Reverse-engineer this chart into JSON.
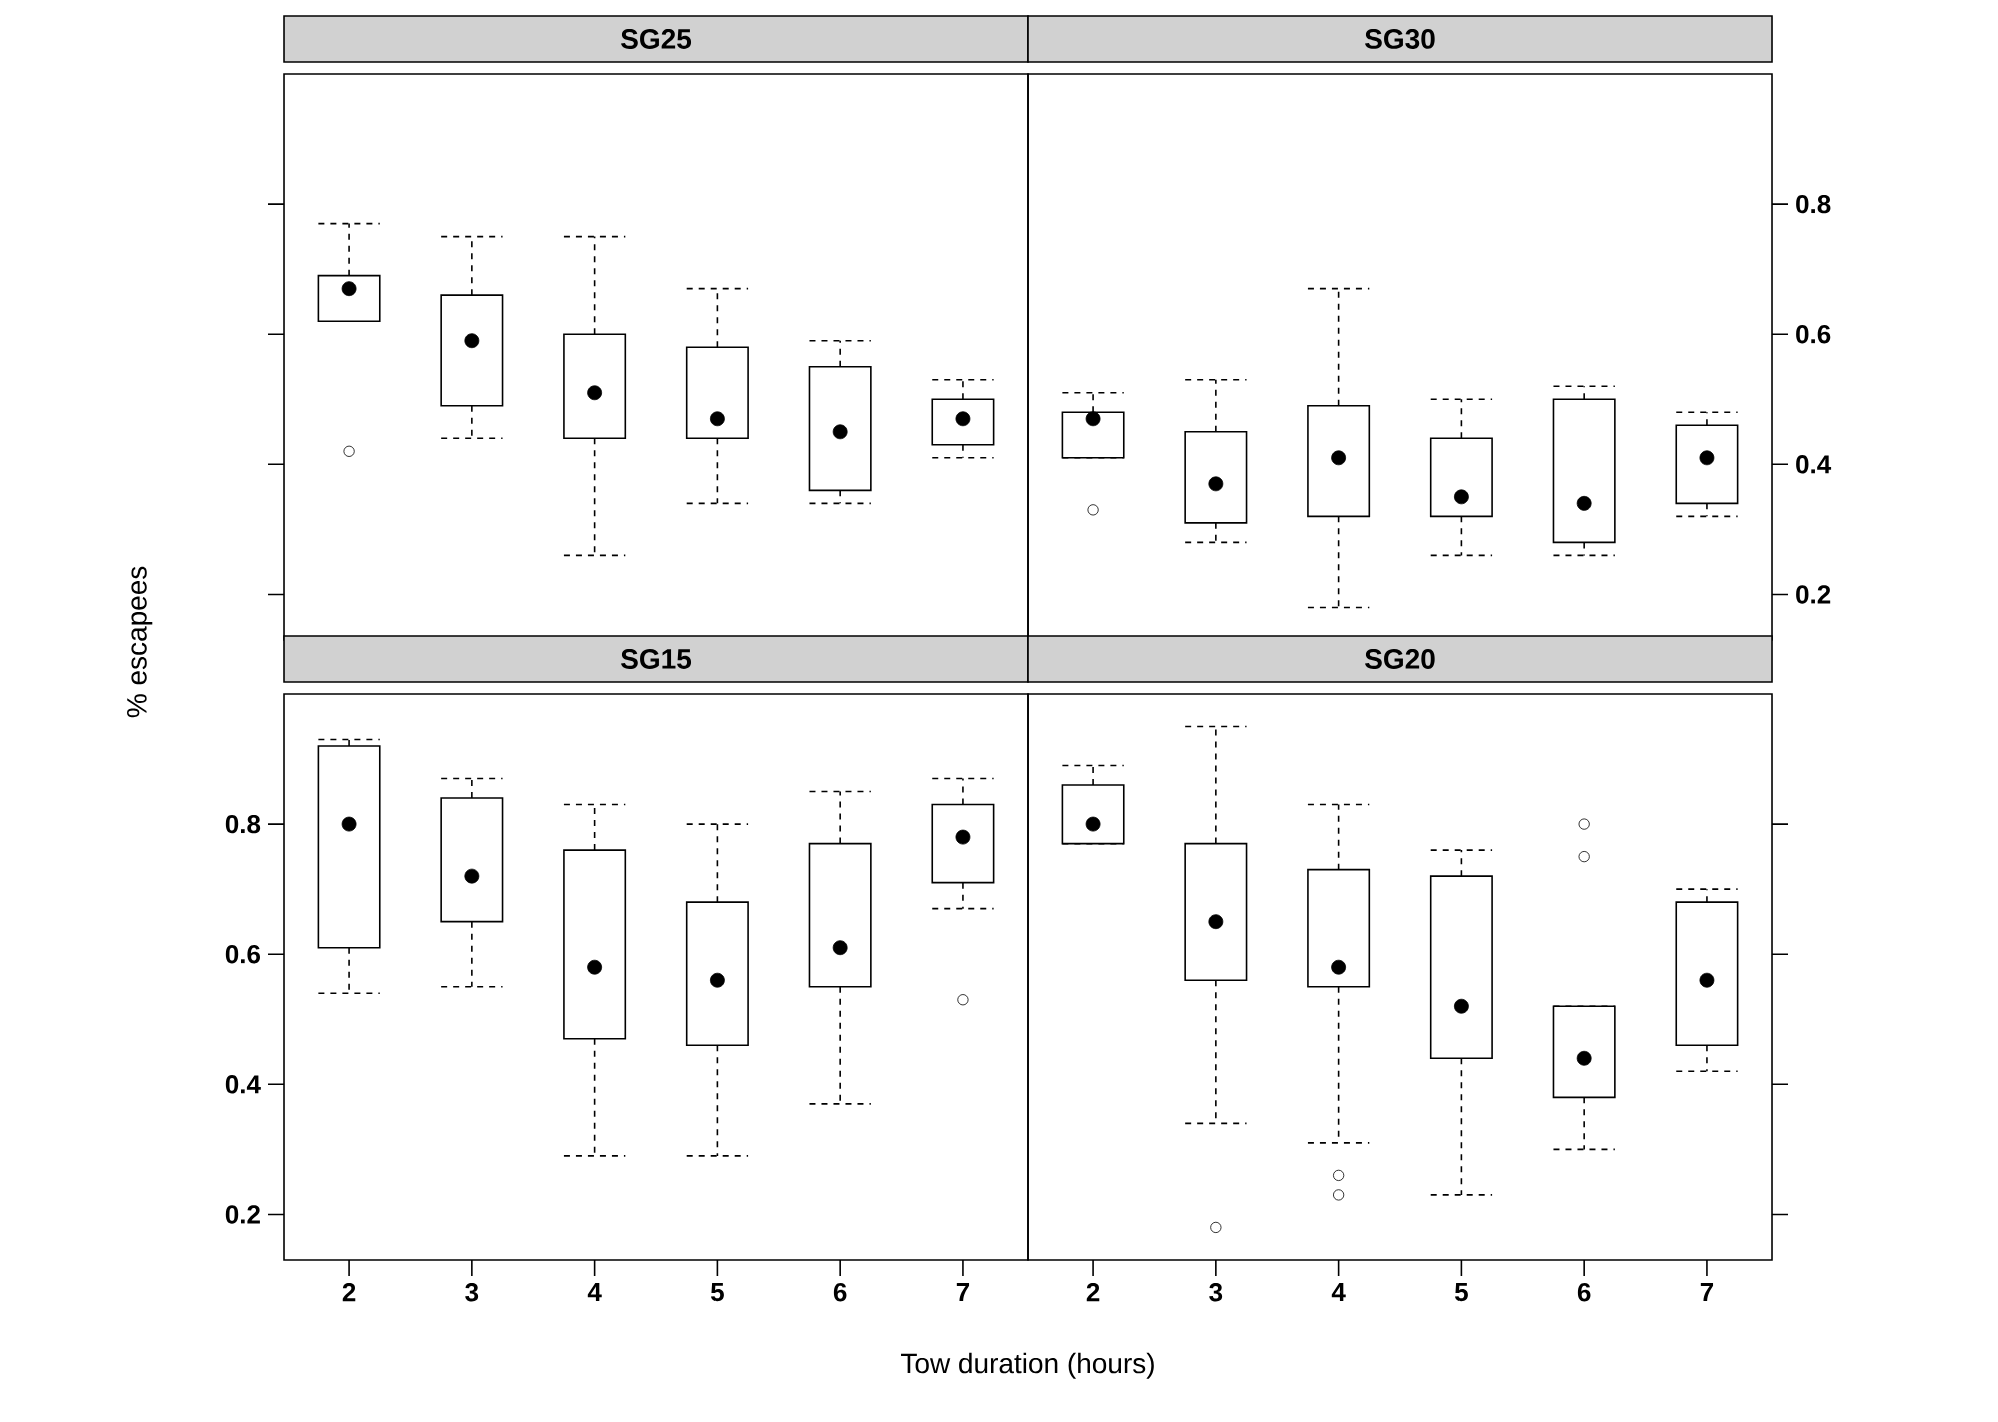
{
  "chart_data": [
    {
      "type": "box",
      "title": "SG25",
      "categories": [
        "2",
        "3",
        "4",
        "5",
        "6",
        "7"
      ],
      "tick_labels": false,
      "ylim": [
        0.13,
        1.0
      ],
      "yticks": [
        0.2,
        0.4,
        0.6,
        0.8
      ],
      "boxes": [
        {
          "low": 0.62,
          "q1": 0.62,
          "median": 0.67,
          "q3": 0.69,
          "high": 0.77,
          "outliers": [
            0.42
          ]
        },
        {
          "low": 0.44,
          "q1": 0.49,
          "median": 0.59,
          "q3": 0.66,
          "high": 0.75
        },
        {
          "low": 0.26,
          "q1": 0.44,
          "median": 0.51,
          "q3": 0.6,
          "high": 0.75
        },
        {
          "low": 0.34,
          "q1": 0.44,
          "median": 0.47,
          "q3": 0.58,
          "high": 0.67
        },
        {
          "low": 0.34,
          "q1": 0.36,
          "median": 0.45,
          "q3": 0.55,
          "high": 0.59
        },
        {
          "low": 0.41,
          "q1": 0.43,
          "median": 0.47,
          "q3": 0.5,
          "high": 0.53
        }
      ]
    },
    {
      "type": "box",
      "title": "SG30",
      "categories": [
        "2",
        "3",
        "4",
        "5",
        "6",
        "7"
      ],
      "tick_labels": "y",
      "ylim": [
        0.13,
        1.0
      ],
      "yticks": [
        0.2,
        0.4,
        0.6,
        0.8
      ],
      "boxes": [
        {
          "low": 0.41,
          "q1": 0.41,
          "median": 0.47,
          "q3": 0.48,
          "high": 0.51,
          "outliers": [
            0.33
          ]
        },
        {
          "low": 0.28,
          "q1": 0.31,
          "median": 0.37,
          "q3": 0.45,
          "high": 0.53
        },
        {
          "low": 0.18,
          "q1": 0.32,
          "median": 0.41,
          "q3": 0.49,
          "high": 0.67
        },
        {
          "low": 0.26,
          "q1": 0.32,
          "median": 0.35,
          "q3": 0.44,
          "high": 0.5
        },
        {
          "low": 0.26,
          "q1": 0.28,
          "median": 0.34,
          "q3": 0.5,
          "high": 0.52
        },
        {
          "low": 0.32,
          "q1": 0.34,
          "median": 0.41,
          "q3": 0.46,
          "high": 0.48
        }
      ]
    },
    {
      "type": "box",
      "title": "SG15",
      "xlabel": "Tow duration (hours)",
      "ylabel": "% escapees",
      "categories": [
        "2",
        "3",
        "4",
        "5",
        "6",
        "7"
      ],
      "ylim": [
        0.13,
        1.0
      ],
      "yticks": [
        0.2,
        0.4,
        0.6,
        0.8
      ],
      "boxes": [
        {
          "low": 0.54,
          "q1": 0.61,
          "median": 0.8,
          "q3": 0.92,
          "high": 0.93
        },
        {
          "low": 0.55,
          "q1": 0.65,
          "median": 0.72,
          "q3": 0.84,
          "high": 0.87
        },
        {
          "low": 0.29,
          "q1": 0.47,
          "median": 0.58,
          "q3": 0.76,
          "high": 0.83
        },
        {
          "low": 0.29,
          "q1": 0.46,
          "median": 0.56,
          "q3": 0.68,
          "high": 0.8
        },
        {
          "low": 0.37,
          "q1": 0.55,
          "median": 0.61,
          "q3": 0.77,
          "high": 0.85
        },
        {
          "low": 0.67,
          "q1": 0.71,
          "median": 0.78,
          "q3": 0.83,
          "high": 0.87,
          "outliers": [
            0.53
          ]
        }
      ]
    },
    {
      "type": "box",
      "title": "SG20",
      "categories": [
        "2",
        "3",
        "4",
        "5",
        "6",
        "7"
      ],
      "tick_labels": "x",
      "ylim": [
        0.13,
        1.0
      ],
      "yticks": [
        0.2,
        0.4,
        0.6,
        0.8
      ],
      "boxes": [
        {
          "low": 0.77,
          "q1": 0.77,
          "median": 0.8,
          "q3": 0.86,
          "high": 0.89
        },
        {
          "low": 0.34,
          "q1": 0.56,
          "median": 0.65,
          "q3": 0.77,
          "high": 0.95,
          "outliers": [
            0.18
          ]
        },
        {
          "low": 0.31,
          "q1": 0.55,
          "median": 0.58,
          "q3": 0.73,
          "high": 0.83,
          "outliers": [
            0.26,
            0.23
          ]
        },
        {
          "low": 0.23,
          "q1": 0.44,
          "median": 0.52,
          "q3": 0.72,
          "high": 0.76
        },
        {
          "low": 0.3,
          "q1": 0.38,
          "median": 0.44,
          "q3": 0.52,
          "high": 0.52,
          "outliers": [
            0.8,
            0.75
          ]
        },
        {
          "low": 0.42,
          "q1": 0.46,
          "median": 0.56,
          "q3": 0.68,
          "high": 0.7
        }
      ]
    }
  ]
}
